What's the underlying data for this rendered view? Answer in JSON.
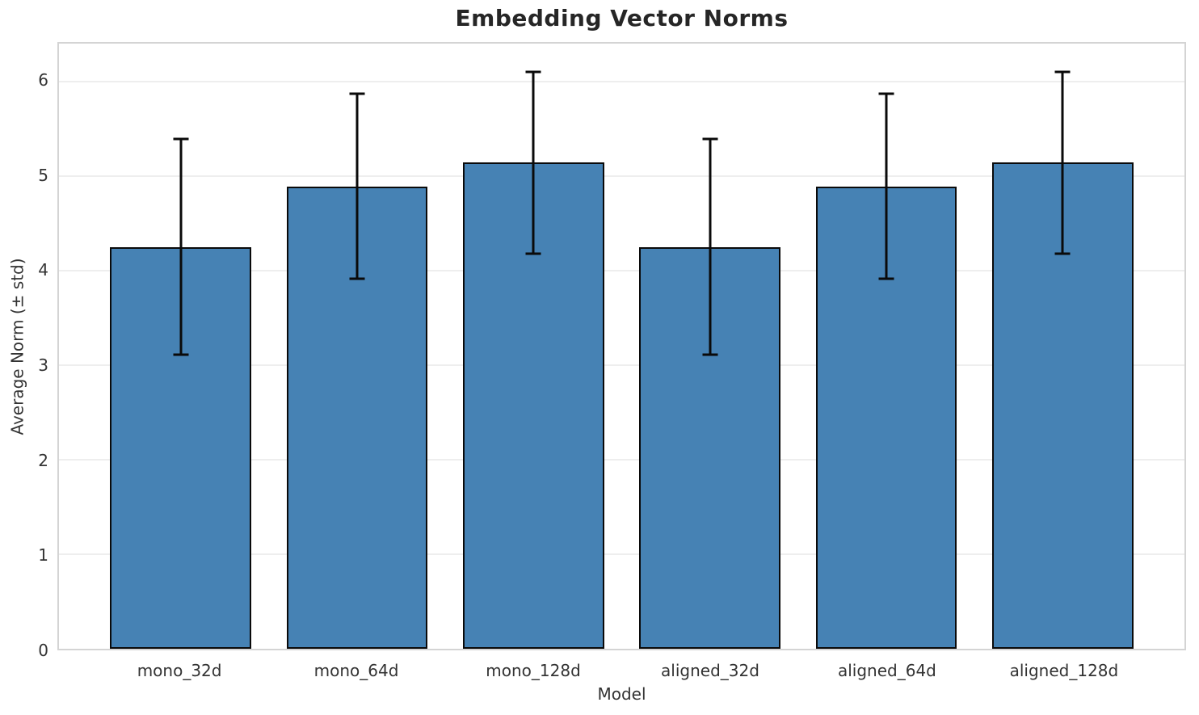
{
  "chart_data": {
    "type": "bar",
    "title": "Embedding Vector Norms",
    "xlabel": "Model",
    "ylabel": "Average Norm (± std)",
    "categories": [
      "mono_32d",
      "mono_64d",
      "mono_128d",
      "aligned_32d",
      "aligned_64d",
      "aligned_128d"
    ],
    "values": [
      4.25,
      4.89,
      5.14,
      4.25,
      4.89,
      5.14
    ],
    "errors": [
      1.14,
      0.98,
      0.96,
      1.14,
      0.98,
      0.96
    ],
    "ylim": [
      0,
      6.4
    ],
    "yticks": [
      0,
      1,
      2,
      3,
      4,
      5,
      6
    ],
    "grid": true,
    "legend": false,
    "error_caps": true,
    "bar_color": "#4682B4",
    "bar_edge_color": "#0a0a0a",
    "error_color": "#0a0a0a",
    "grid_color": "#eeeeee",
    "spine_color": "#d4d4d4",
    "tick_color": "#333333",
    "title_color": "#262626",
    "background_color": "#ffffff"
  }
}
